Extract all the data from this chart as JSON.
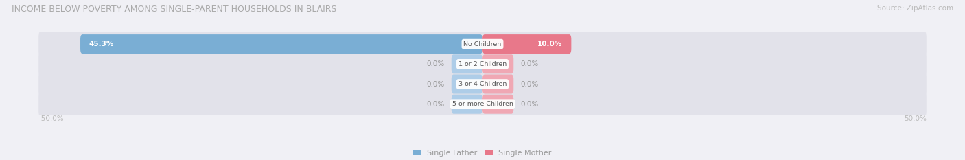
{
  "title": "INCOME BELOW POVERTY AMONG SINGLE-PARENT HOUSEHOLDS IN BLAIRS",
  "source": "Source: ZipAtlas.com",
  "categories": [
    "No Children",
    "1 or 2 Children",
    "3 or 4 Children",
    "5 or more Children"
  ],
  "single_father": [
    45.3,
    0.0,
    0.0,
    0.0
  ],
  "single_mother": [
    10.0,
    0.0,
    0.0,
    0.0
  ],
  "max_val": 50.0,
  "father_color": "#7aaed4",
  "mother_color": "#e8788a",
  "father_color_light": "#aecde8",
  "mother_color_light": "#f0a8b4",
  "bg_color": "#f0f0f5",
  "row_bg": "#e2e2ea",
  "label_color": "#999999",
  "title_color": "#aaaaaa",
  "axis_label_color": "#bbbbbb",
  "legend_father": "Single Father",
  "legend_mother": "Single Mother",
  "stub_size": 3.5
}
